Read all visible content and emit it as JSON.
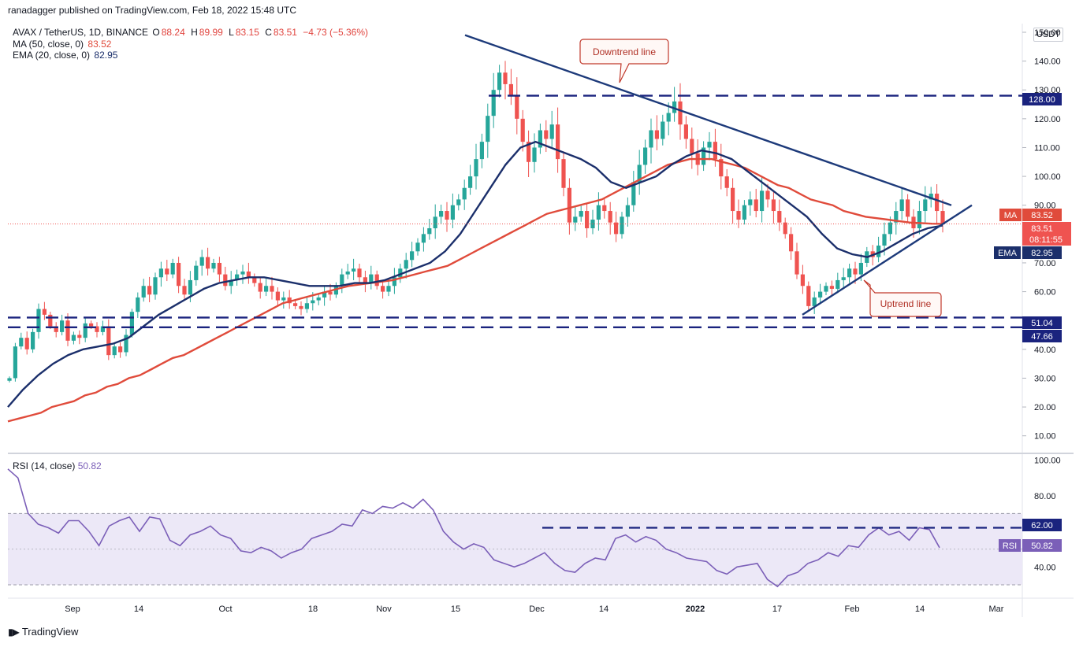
{
  "header": {
    "publisher": "ranadagger published on TradingView.com, Feb 18, 2022 15:48 UTC"
  },
  "legend": {
    "symbol": "AVAX / TetherUS, 1D, BINANCE",
    "open_label": "O",
    "open": "88.24",
    "high_label": "H",
    "high": "89.99",
    "low_label": "L",
    "low": "83.15",
    "close_label": "C",
    "close": "83.51",
    "change": "−4.73 (−5.36%)",
    "ma_label": "MA (50, close, 0)",
    "ma_value": "83.52",
    "ema_label": "EMA (20, close, 0)",
    "ema_value": "82.95",
    "rsi_label": "RSI (14, close)",
    "rsi_value": "50.82"
  },
  "currency": "USDT",
  "footer": {
    "brand": "TradingView",
    "logo": "tv-logo-icon"
  },
  "annotations": {
    "downtrend": "Downtrend line",
    "uptrend": "Uptrend line"
  },
  "price_tags": {
    "level_128": "128.00",
    "ma_tag_label": "MA",
    "ma_tag_value": "83.52",
    "last_price": "83.51",
    "countdown": "08:11:55",
    "ema_tag_label": "EMA",
    "ema_tag_value": "82.95",
    "level_51": "51.04",
    "level_47": "47.66",
    "rsi_tag_label": "RSI",
    "rsi_tag_value": "50.82",
    "rsi_level": "62.00"
  },
  "colors": {
    "up": "#26a69a",
    "down": "#ef5350",
    "ma": "#e04b3b",
    "ema": "#1b2f6b",
    "trend": "#1d3a7a",
    "rsi": "#7b5fb8",
    "rsi_band": "#ece8f7",
    "level": "#1a237e"
  },
  "chart_data": {
    "type": "candlestick",
    "price_axis": {
      "ticks": [
        "150.00",
        "140.00",
        "130.00",
        "120.00",
        "110.00",
        "100.00",
        "90.00",
        "80.00",
        "70.00",
        "60.00",
        "50.00",
        "40.00",
        "30.00",
        "20.00",
        "10.00"
      ],
      "range": [
        5,
        153
      ]
    },
    "rsi_axis": {
      "ticks": [
        "100.00",
        "80.00",
        "40.00"
      ],
      "range": [
        26,
        102
      ],
      "band": [
        30,
        70
      ]
    },
    "x_axis": {
      "labels": [
        "Sep",
        "14",
        "Oct",
        "18",
        "Nov",
        "15",
        "Dec",
        "14",
        "2022",
        "17",
        "Feb",
        "14",
        "Mar"
      ]
    },
    "horizontal_levels": [
      128.0,
      51.04,
      47.66
    ],
    "rsi_level": 62.0,
    "downtrend_line": {
      "start": [
        "2021-11-18",
        149
      ],
      "end": [
        "2022-02-19",
        90
      ]
    },
    "uptrend_line": {
      "start": [
        "2022-01-22",
        52
      ],
      "end": [
        "2022-02-22",
        90
      ]
    },
    "candles_close": [
      30,
      41,
      44,
      40,
      46,
      54,
      52,
      48,
      46,
      50,
      43,
      45,
      44,
      49,
      48,
      46,
      48,
      38,
      41,
      39,
      45,
      53,
      58,
      62,
      59,
      65,
      68,
      66,
      70,
      62,
      59,
      64,
      69,
      72,
      68,
      70,
      66,
      62,
      64,
      66,
      67,
      65,
      63,
      60,
      62,
      60,
      57,
      58,
      56,
      55,
      54,
      56,
      57,
      58,
      60,
      59,
      62,
      66,
      67,
      68,
      65,
      63,
      66,
      62,
      60,
      62,
      65,
      68,
      71,
      74,
      77,
      80,
      82,
      86,
      88,
      85,
      90,
      92,
      96,
      100,
      106,
      112,
      121,
      130,
      136,
      132,
      128,
      120,
      112,
      105,
      110,
      116,
      113,
      118,
      106,
      96,
      84,
      86,
      88,
      82,
      85,
      90,
      88,
      84,
      80,
      86,
      90,
      98,
      104,
      110,
      116,
      113,
      119,
      122,
      126,
      118,
      113,
      108,
      104,
      110,
      112,
      106,
      100,
      96,
      88,
      85,
      90,
      92,
      88,
      95,
      92,
      88,
      84,
      80,
      74,
      66,
      62,
      55,
      58,
      60,
      62,
      61,
      64,
      65,
      68,
      66,
      70,
      74,
      72,
      76,
      80,
      84,
      88,
      92,
      86,
      82,
      88,
      92,
      94,
      88,
      83.51
    ],
    "ma_50": [
      15,
      16,
      17,
      18,
      20,
      21,
      22,
      24,
      25,
      27,
      28,
      30,
      31,
      33,
      35,
      37,
      38,
      40,
      42,
      44,
      46,
      48,
      50,
      52,
      54,
      56,
      57,
      58,
      59,
      60,
      61,
      62,
      62.5,
      63,
      63.5,
      64,
      65,
      66,
      67,
      68,
      69,
      71,
      73,
      75,
      77,
      79,
      81,
      83,
      85,
      87,
      88,
      89,
      90,
      91,
      92,
      94,
      96,
      98,
      100,
      102,
      104,
      105,
      106,
      106,
      106,
      105,
      104,
      103,
      101,
      99,
      97,
      96,
      94,
      92,
      91,
      90,
      88,
      87,
      86,
      85.5,
      85,
      84.5,
      84,
      83.8,
      83.6,
      83.52
    ],
    "ema_20": [
      20,
      26,
      31,
      35,
      38,
      40,
      41,
      42,
      44,
      48,
      52,
      55,
      58,
      61,
      63,
      64,
      65,
      65,
      64,
      63,
      62,
      62,
      62,
      63,
      63,
      64,
      66,
      68,
      70,
      74,
      80,
      88,
      96,
      104,
      110,
      112,
      110,
      108,
      106,
      103,
      98,
      96,
      98,
      100,
      104,
      107,
      109,
      108,
      106,
      102,
      98,
      94,
      90,
      86,
      80,
      75,
      73,
      72,
      74,
      77,
      80,
      82,
      82.95
    ],
    "rsi": [
      95,
      90,
      70,
      64,
      62,
      59,
      66,
      66,
      60,
      52,
      63,
      66,
      68,
      60,
      68,
      67,
      55,
      52,
      58,
      60,
      63,
      58,
      56,
      49,
      48,
      51,
      49,
      45,
      48,
      50,
      56,
      58,
      60,
      64,
      63,
      72,
      70,
      74,
      73,
      76,
      73,
      78,
      72,
      60,
      54,
      50,
      53,
      51,
      44,
      42,
      40,
      42,
      45,
      48,
      42,
      38,
      37,
      42,
      45,
      44,
      56,
      58,
      54,
      57,
      55,
      50,
      48,
      45,
      44,
      43,
      38,
      36,
      40,
      41,
      42,
      33,
      29,
      35,
      37,
      42,
      44,
      48,
      46,
      52,
      51,
      58,
      62,
      58,
      60,
      55,
      62,
      61,
      50.82
    ]
  }
}
